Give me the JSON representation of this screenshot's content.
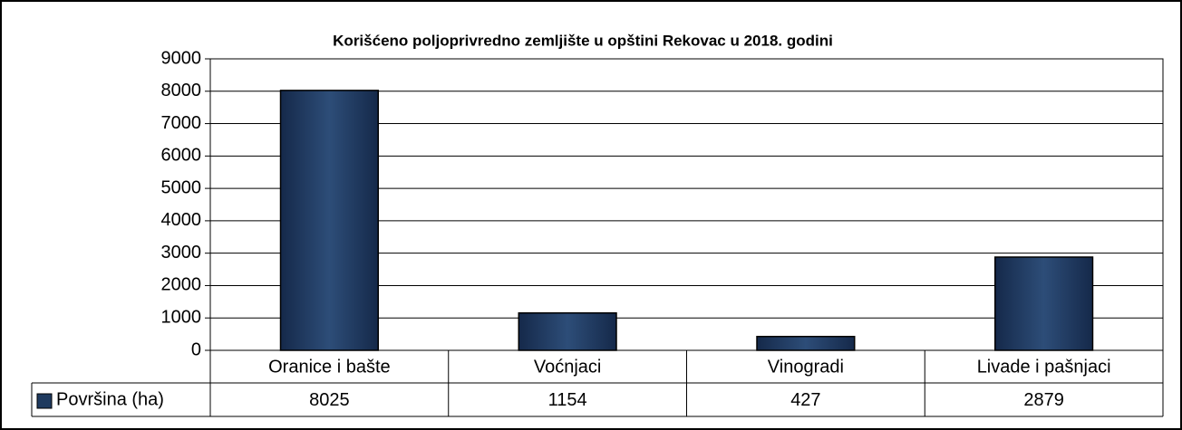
{
  "chart_data": {
    "type": "bar",
    "title": "Korišćeno poljoprivredno zemljište u opštini Rekovac u 2018. godini",
    "categories": [
      "Oranice i bašte",
      "Voćnjaci",
      "Vinogradi",
      "Livade i pašnjaci"
    ],
    "series": [
      {
        "name": "Površina (ha)",
        "color": "#1f3a5f",
        "values": [
          8025,
          1154,
          427,
          2879
        ]
      }
    ],
    "ylim": [
      0,
      9000
    ],
    "yticks": [
      0,
      1000,
      2000,
      3000,
      4000,
      5000,
      6000,
      7000,
      8000,
      9000
    ],
    "grid": true,
    "legend": "bottom-left"
  }
}
